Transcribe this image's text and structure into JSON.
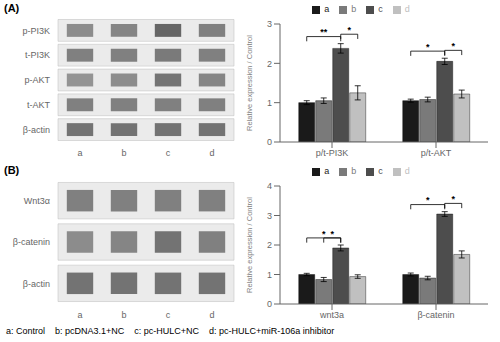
{
  "chart_data": [
    {
      "type": "heatmap",
      "title": "(A)",
      "categories": [
        "a",
        "b",
        "c",
        "d"
      ],
      "rows": [
        "p-PI3K",
        "t-PI3K",
        "p-AKT",
        "t-AKT",
        "β-actin"
      ],
      "values": [
        [
          0.55,
          0.52,
          0.4,
          0.5
        ],
        [
          0.5,
          0.5,
          0.48,
          0.5
        ],
        [
          0.58,
          0.55,
          0.45,
          0.52
        ],
        [
          0.5,
          0.5,
          0.5,
          0.5
        ],
        [
          0.45,
          0.45,
          0.45,
          0.45
        ]
      ]
    },
    {
      "type": "bar",
      "categories": [
        "p/t-PI3K",
        "p/t-AKT"
      ],
      "y_label": "Relative expression / Control",
      "series": [
        {
          "name": "a",
          "color": "#1a1a1a",
          "values": [
            1.0,
            1.05
          ],
          "errors": [
            0.05,
            0.04
          ]
        },
        {
          "name": "b",
          "color": "#7a7a7a",
          "values": [
            1.05,
            1.08
          ],
          "errors": [
            0.07,
            0.06
          ]
        },
        {
          "name": "c",
          "color": "#4d4d4d",
          "values": [
            2.38,
            2.05
          ],
          "errors": [
            0.12,
            0.08
          ]
        },
        {
          "name": "d",
          "color": "#c0c0c0",
          "values": [
            1.25,
            1.22
          ],
          "errors": [
            0.18,
            0.1
          ]
        }
      ],
      "ylim": [
        0,
        3
      ],
      "yticks": [
        0,
        1,
        2,
        3
      ],
      "legend": "top",
      "annotations": [
        {
          "text": "**",
          "category": "p/t-PI3K",
          "from": "a",
          "to": "c"
        },
        {
          "text": "*",
          "category": "p/t-PI3K",
          "from": "c",
          "to": "d"
        },
        {
          "text": "*",
          "category": "p/t-AKT",
          "from": "a",
          "to": "c"
        },
        {
          "text": "*",
          "category": "p/t-AKT",
          "from": "c",
          "to": "d"
        }
      ]
    },
    {
      "type": "heatmap",
      "title": "(B)",
      "categories": [
        "a",
        "b",
        "c",
        "d"
      ],
      "rows": [
        "Wnt3α",
        "β-catenin",
        "β-actin"
      ],
      "values": [
        [
          0.5,
          0.5,
          0.5,
          0.5
        ],
        [
          0.55,
          0.52,
          0.45,
          0.5
        ],
        [
          0.45,
          0.45,
          0.45,
          0.45
        ]
      ]
    },
    {
      "type": "bar",
      "categories": [
        "wnt3a",
        "β-catenin"
      ],
      "y_label": "Relative expression / Control",
      "series": [
        {
          "name": "a",
          "color": "#1a1a1a",
          "values": [
            1.0,
            1.0
          ],
          "errors": [
            0.04,
            0.05
          ]
        },
        {
          "name": "b",
          "color": "#7a7a7a",
          "values": [
            0.83,
            0.88
          ],
          "errors": [
            0.07,
            0.06
          ]
        },
        {
          "name": "c",
          "color": "#4d4d4d",
          "values": [
            1.9,
            3.05
          ],
          "errors": [
            0.1,
            0.08
          ]
        },
        {
          "name": "d",
          "color": "#c0c0c0",
          "values": [
            0.93,
            1.68
          ],
          "errors": [
            0.06,
            0.12
          ]
        }
      ],
      "ylim": [
        0,
        4
      ],
      "yticks": [
        0,
        1,
        2,
        3,
        4
      ],
      "legend": "top",
      "annotations": [
        {
          "text": "*",
          "category": "wnt3a",
          "from": "a",
          "to": "c"
        },
        {
          "text": "*",
          "category": "wnt3a",
          "from": "b",
          "to": "c"
        },
        {
          "text": "*",
          "category": "β-catenin",
          "from": "a",
          "to": "c"
        },
        {
          "text": "*",
          "category": "β-catenin",
          "from": "c",
          "to": "d"
        }
      ]
    }
  ],
  "annotations": [
    "a: Control",
    "b: pcDNA3.1+NC",
    "c: pc-HULC+NC",
    "d: pc-HULC+miR-106a inhibitor"
  ]
}
